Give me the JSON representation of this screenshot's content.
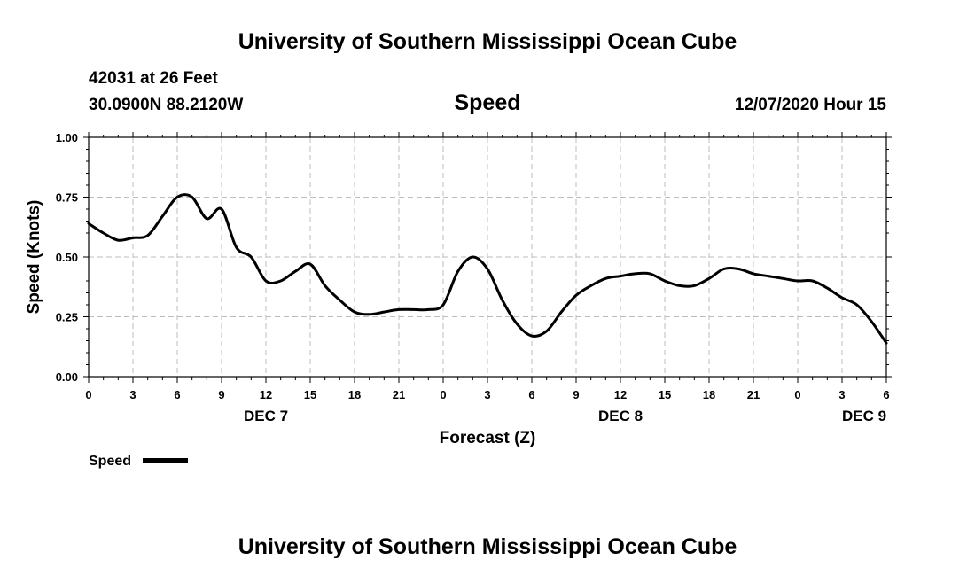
{
  "header": {
    "title": "University of Southern Mississippi Ocean Cube",
    "station": "42031 at 26 Feet",
    "coords": "30.0900N 88.2120W",
    "datetime": "12/07/2020 Hour 15"
  },
  "footer": {
    "title": "University of Southern Mississippi Ocean Cube"
  },
  "chart_data": {
    "type": "line",
    "title": "Speed",
    "xlabel": "Forecast (Z)",
    "ylabel": "Speed (Knots)",
    "ylim": [
      0,
      1
    ],
    "xlim": [
      0,
      54
    ],
    "x_unit": "hours from DEC 7 00Z",
    "grid": true,
    "y_ticks": [
      "0.00",
      "0.25",
      "0.50",
      "0.75",
      "1.00"
    ],
    "x_ticks": [
      "0",
      "3",
      "6",
      "9",
      "12",
      "15",
      "18",
      "21",
      "0",
      "3",
      "6",
      "9",
      "12",
      "15",
      "18",
      "21",
      "0",
      "3",
      "6"
    ],
    "day_labels": [
      {
        "label": "DEC 7",
        "x": 12
      },
      {
        "label": "DEC 8",
        "x": 36
      },
      {
        "label": "DEC 9",
        "x": 52.5
      }
    ],
    "legend": {
      "position": "bottom-left",
      "label": "Speed"
    },
    "series": [
      {
        "name": "Speed",
        "color": "#000000",
        "x": [
          0,
          1,
          2,
          3,
          4,
          5,
          6,
          7,
          8,
          9,
          10,
          11,
          12,
          13,
          14,
          15,
          16,
          17,
          18,
          19,
          20,
          21,
          22,
          23,
          24,
          25,
          26,
          27,
          28,
          29,
          30,
          31,
          32,
          33,
          34,
          35,
          36,
          37,
          38,
          39,
          40,
          41,
          42,
          43,
          44,
          45,
          46,
          47,
          48,
          49,
          50,
          51,
          52,
          53,
          54
        ],
        "values": [
          0.64,
          0.6,
          0.57,
          0.58,
          0.59,
          0.67,
          0.75,
          0.75,
          0.66,
          0.7,
          0.54,
          0.5,
          0.4,
          0.4,
          0.44,
          0.47,
          0.38,
          0.32,
          0.27,
          0.26,
          0.27,
          0.28,
          0.28,
          0.28,
          0.3,
          0.44,
          0.5,
          0.45,
          0.32,
          0.22,
          0.17,
          0.19,
          0.27,
          0.34,
          0.38,
          0.41,
          0.42,
          0.43,
          0.43,
          0.4,
          0.38,
          0.38,
          0.41,
          0.45,
          0.45,
          0.43,
          0.42,
          0.41,
          0.4,
          0.4,
          0.37,
          0.33,
          0.3,
          0.23,
          0.14
        ]
      }
    ]
  }
}
